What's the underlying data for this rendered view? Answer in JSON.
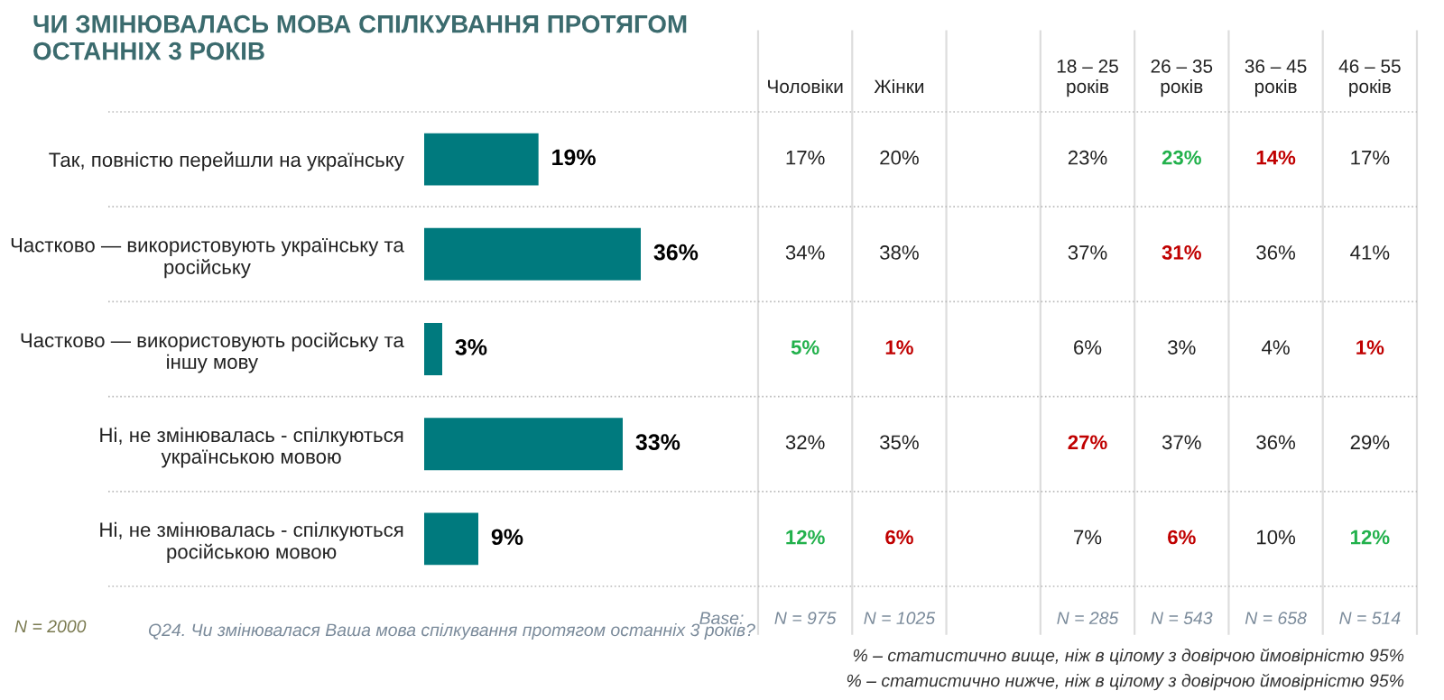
{
  "chart_data": [
    {
      "type": "bar",
      "orientation": "horizontal",
      "title": "ЧИ ЗМІНЮВАЛАСЬ МОВА СПІЛКУВАННЯ ПРОТЯГОМ\nОСТАННІХ 3 РОКІВ",
      "categories": [
        "Так, повністю перейшли на українську",
        "Частково — використовують українську та\nросійську",
        "Частково — використовують російську та\nіншу мову",
        "Ні, не змінювалась - спілкуються\nукраїнською мовою",
        "Ні, не змінювалась - спілкуються\nросійською мовою"
      ],
      "values": [
        19,
        36,
        3,
        33,
        9
      ],
      "color": "#007a7e",
      "value_labels": [
        "19%",
        "36%",
        "3%",
        "33%",
        "9%"
      ],
      "tick_labels": "y",
      "annotations": [
        "N = 2000",
        "Q24. Чи змінювалася Ваша мова спілкування протягом останніх 3 років?",
        "% – статистично вище, ніж в цілому з довірчою ймовірністю 95%",
        "% – статистично нижче, ніж в цілому з довірчою ймовірністю 95%"
      ]
    },
    {
      "type": "other",
      "categories": [
        "Чоловіки",
        "Жінки",
        "18 – 25\nроків",
        "26 – 35\nроків",
        "36 – 45\nроків",
        "46 – 55\nроків"
      ],
      "cell_labels": [
        [
          "17%",
          "20%",
          "23%",
          "23%",
          "14%",
          "17%"
        ],
        [
          "34%",
          "38%",
          "37%",
          "31%",
          "36%",
          "41%"
        ],
        [
          "5%",
          "1%",
          "6%",
          "3%",
          "4%",
          "1%"
        ],
        [
          "32%",
          "35%",
          "27%",
          "37%",
          "36%",
          "29%"
        ],
        [
          "12%",
          "6%",
          "7%",
          "6%",
          "10%",
          "12%"
        ]
      ],
      "colors": [
        [
          "#222222",
          "#222222",
          "#222222",
          "#22b14c",
          "#c00000",
          "#222222"
        ],
        [
          "#222222",
          "#222222",
          "#222222",
          "#c00000",
          "#222222",
          "#222222"
        ],
        [
          "#22b14c",
          "#c00000",
          "#222222",
          "#222222",
          "#222222",
          "#c00000"
        ],
        [
          "#222222",
          "#222222",
          "#c00000",
          "#222222",
          "#222222",
          "#222222"
        ],
        [
          "#22b14c",
          "#c00000",
          "#222222",
          "#c00000",
          "#222222",
          "#22b14c"
        ]
      ],
      "annotations": [
        "Base:",
        "N = 975",
        "N = 1025",
        "N = 285",
        "N = 543",
        "N = 658",
        "N = 514"
      ]
    }
  ]
}
